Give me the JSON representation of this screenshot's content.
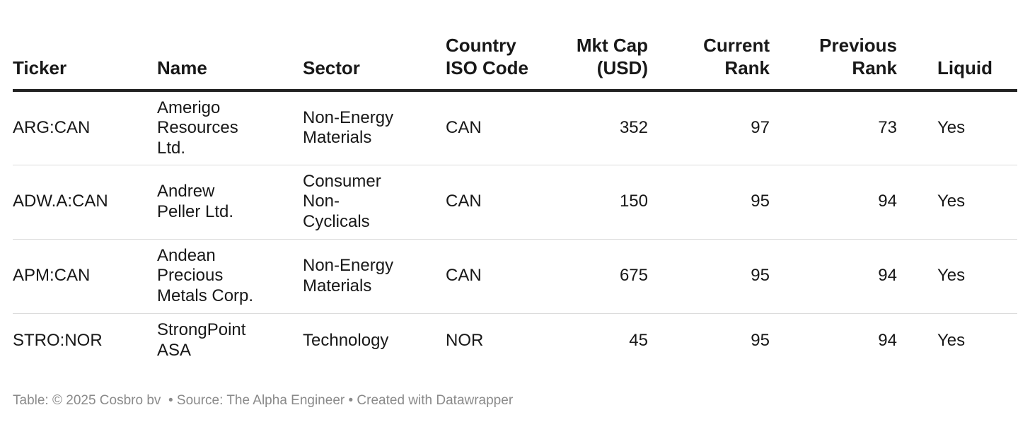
{
  "chart_data": {
    "type": "table",
    "columns": [
      "Ticker",
      "Name",
      "Sector",
      "Country ISO Code",
      "Mkt Cap (USD)",
      "Current Rank",
      "Previous Rank",
      "Liquid"
    ],
    "headers": {
      "ticker": "Ticker",
      "name": "Name",
      "sector": "Sector",
      "iso_line1": "Country",
      "iso_line2": "ISO Code",
      "mkt_line1": "Mkt Cap",
      "mkt_line2": "(USD)",
      "cur_line1": "Current",
      "cur_line2": "Rank",
      "prev_line1": "Previous",
      "prev_line2": "Rank",
      "liquid": "Liquid"
    },
    "rows": [
      {
        "ticker": "ARG:CAN",
        "name": [
          "Amerigo",
          "Resources",
          "Ltd."
        ],
        "sector": [
          "Non-Energy",
          "Materials"
        ],
        "iso": "CAN",
        "mkt_cap": "352",
        "current_rank": "97",
        "previous_rank": "73",
        "liquid": "Yes"
      },
      {
        "ticker": "ADW.A:CAN",
        "name": [
          "Andrew",
          "Peller Ltd."
        ],
        "sector": [
          "Consumer",
          "Non-",
          "Cyclicals"
        ],
        "iso": "CAN",
        "mkt_cap": "150",
        "current_rank": "95",
        "previous_rank": "94",
        "liquid": "Yes"
      },
      {
        "ticker": "APM:CAN",
        "name": [
          "Andean",
          "Precious",
          "Metals Corp."
        ],
        "sector": [
          "Non-Energy",
          "Materials"
        ],
        "iso": "CAN",
        "mkt_cap": "675",
        "current_rank": "95",
        "previous_rank": "94",
        "liquid": "Yes"
      },
      {
        "ticker": "STRO:NOR",
        "name": [
          "StrongPoint",
          "ASA"
        ],
        "sector": [
          "Technology"
        ],
        "iso": "NOR",
        "mkt_cap": "45",
        "current_rank": "95",
        "previous_rank": "94",
        "liquid": "Yes"
      }
    ]
  },
  "footer": {
    "table_credit": "Table: © 2025 Cosbro bv",
    "source": "• Source: The Alpha Engineer",
    "created": "• Created with Datawrapper"
  }
}
